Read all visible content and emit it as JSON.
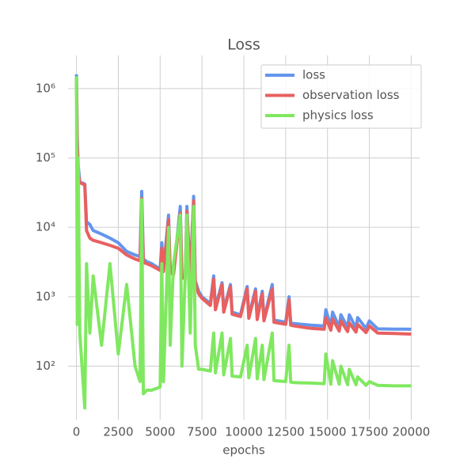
{
  "chart_data": {
    "type": "line",
    "title": "Loss",
    "x_label": "epochs",
    "log_y": true,
    "grid": true,
    "legend": "upper right",
    "xlim": [
      -500,
      20500
    ],
    "xticks": [
      0,
      2500,
      5000,
      7500,
      10000,
      12500,
      15000,
      17500,
      20000
    ],
    "ylim": [
      17,
      3000000
    ],
    "yticks": [
      {
        "value": 100,
        "label": "10²"
      },
      {
        "value": 1000,
        "label": "10³"
      },
      {
        "value": 10000,
        "label": "10⁴"
      },
      {
        "value": 100000,
        "label": "10⁵"
      },
      {
        "value": 1000000,
        "label": "10⁶"
      }
    ],
    "x": [
      0,
      50,
      100,
      200,
      500,
      600,
      800,
      1000,
      1500,
      2000,
      2500,
      3000,
      3500,
      3800,
      3900,
      4000,
      4200,
      4500,
      5000,
      5100,
      5200,
      5500,
      5600,
      5800,
      6200,
      6300,
      6500,
      6600,
      6800,
      7000,
      7100,
      7300,
      7500,
      8000,
      8200,
      8300,
      8700,
      8800,
      9200,
      9300,
      9800,
      10200,
      10300,
      10700,
      10800,
      11100,
      11200,
      11700,
      11800,
      12500,
      12700,
      12800,
      13000,
      14000,
      14800,
      14900,
      15200,
      15300,
      15700,
      15800,
      16200,
      16300,
      16700,
      16800,
      17300,
      17500,
      18000,
      19000,
      20000
    ],
    "series": [
      {
        "name": "loss",
        "color": "#6495ed",
        "values": [
          1600000,
          200000,
          80000,
          45000,
          42000,
          12000,
          11000,
          9000,
          8000,
          7000,
          6000,
          4500,
          4000,
          3800,
          33000,
          3500,
          3200,
          3000,
          2500,
          6000,
          2400,
          15000,
          2300,
          2200,
          20000,
          2000,
          1900,
          20000,
          1800,
          28000,
          1700,
          1200,
          1000,
          800,
          2000,
          700,
          1600,
          650,
          1500,
          600,
          550,
          1400,
          520,
          1300,
          500,
          1200,
          480,
          1500,
          460,
          430,
          1000,
          420,
          410,
          390,
          380,
          650,
          370,
          600,
          365,
          550,
          360,
          550,
          355,
          500,
          350,
          450,
          345,
          342,
          340
        ]
      },
      {
        "name": "observation loss",
        "color": "#e86060",
        "values": [
          1400000,
          150000,
          60000,
          44000,
          41000,
          9000,
          7000,
          6500,
          6000,
          5500,
          5000,
          4000,
          3500,
          3300,
          26000,
          3100,
          3000,
          2800,
          2400,
          5000,
          2300,
          13000,
          2200,
          2100,
          16000,
          1900,
          1800,
          17000,
          1700,
          24000,
          1600,
          1100,
          950,
          750,
          1800,
          650,
          1500,
          600,
          1400,
          560,
          520,
          1300,
          490,
          1200,
          470,
          1100,
          450,
          1300,
          430,
          400,
          900,
          390,
          380,
          350,
          340,
          500,
          330,
          480,
          320,
          450,
          315,
          420,
          310,
          400,
          305,
          380,
          300,
          295,
          290
        ]
      },
      {
        "name": "physics loss",
        "color": "#80e860",
        "values": [
          1500000,
          400,
          100000,
          300,
          25,
          3000,
          300,
          2000,
          200,
          3000,
          150,
          1500,
          100,
          60,
          25000,
          40,
          45,
          45,
          50,
          3000,
          60,
          10000,
          200,
          3000,
          15000,
          100,
          2000,
          15000,
          300,
          20000,
          200,
          90,
          90,
          85,
          300,
          80,
          300,
          75,
          250,
          72,
          70,
          200,
          68,
          250,
          66,
          200,
          64,
          300,
          62,
          60,
          200,
          59,
          58,
          57,
          56,
          150,
          55,
          120,
          55,
          100,
          54,
          90,
          54,
          70,
          53,
          60,
          53,
          52,
          52
        ]
      }
    ]
  }
}
